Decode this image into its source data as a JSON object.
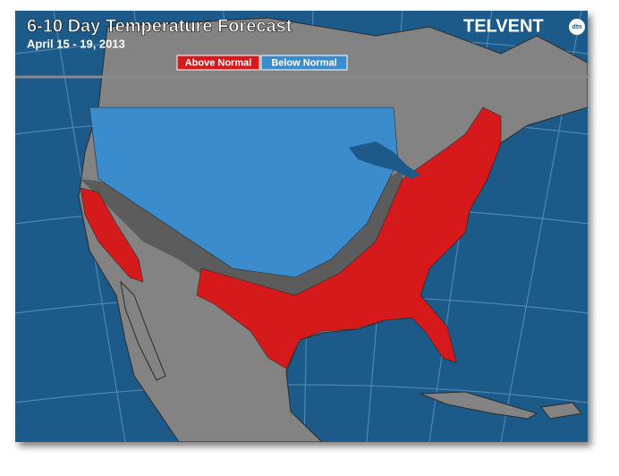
{
  "header": {
    "title": "6-10 Day Temperature Forecast",
    "date": "April 15 - 19, 2013",
    "logo": "TELVENT",
    "logo_badge": "dtn"
  },
  "legend": [
    {
      "label": "Above Normal",
      "color": "#d61a1c"
    },
    {
      "label": "Below Normal",
      "color": "#3a8ccc"
    }
  ]
}
